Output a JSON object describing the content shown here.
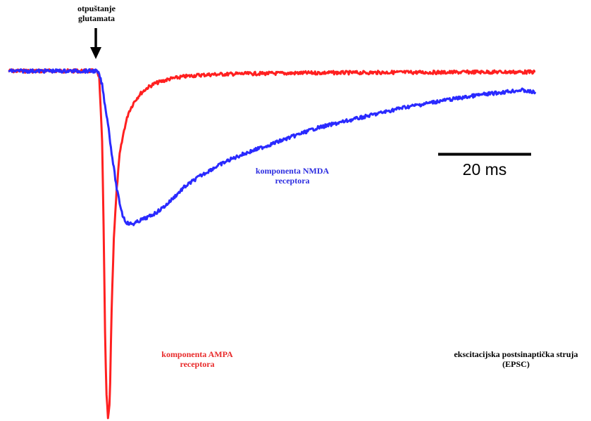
{
  "chart_data": {
    "type": "line",
    "x_unit": "ms",
    "y_unit": "relative current (0 = baseline, -1 = AMPA peak)",
    "series": [
      {
        "key": "ampa",
        "name": "komponenta AMPA receptora",
        "color": "#ff2020",
        "points": [
          [
            0,
            0
          ],
          [
            3,
            0
          ],
          [
            6,
            0
          ],
          [
            9,
            0
          ],
          [
            12,
            0
          ],
          [
            15,
            0
          ],
          [
            18,
            0
          ],
          [
            21,
            0
          ],
          [
            24,
            0
          ],
          [
            27,
            0
          ],
          [
            30,
            0
          ],
          [
            31,
            -0.02
          ],
          [
            32,
            -0.2
          ],
          [
            32.5,
            -0.45
          ],
          [
            33,
            -0.75
          ],
          [
            33.4,
            -0.92
          ],
          [
            34,
            -1.0
          ],
          [
            34.6,
            -0.96
          ],
          [
            35.2,
            -0.7
          ],
          [
            36,
            -0.48
          ],
          [
            37,
            -0.34
          ],
          [
            38,
            -0.24
          ],
          [
            39.5,
            -0.17
          ],
          [
            41,
            -0.12
          ],
          [
            43,
            -0.088
          ],
          [
            45,
            -0.066
          ],
          [
            47.5,
            -0.048
          ],
          [
            50,
            -0.036
          ],
          [
            55,
            -0.023
          ],
          [
            60,
            -0.016
          ],
          [
            65,
            -0.012
          ],
          [
            70,
            -0.01
          ],
          [
            80,
            -0.008
          ],
          [
            90,
            -0.007
          ],
          [
            100,
            -0.006
          ],
          [
            110,
            -0.005
          ],
          [
            120,
            -0.005
          ],
          [
            130,
            -0.004
          ],
          [
            140,
            -0.004
          ],
          [
            150,
            -0.004
          ],
          [
            160,
            -0.003
          ],
          [
            170,
            -0.003
          ],
          [
            180,
            -0.003
          ]
        ]
      },
      {
        "key": "nmda",
        "name": "komponenta NMDA receptora",
        "color": "#2a2aff",
        "points": [
          [
            0,
            0
          ],
          [
            3,
            0
          ],
          [
            6,
            0
          ],
          [
            9,
            0
          ],
          [
            12,
            0
          ],
          [
            15,
            0
          ],
          [
            18,
            0
          ],
          [
            21,
            0
          ],
          [
            24,
            0
          ],
          [
            27,
            0
          ],
          [
            30,
            0
          ],
          [
            31,
            -0.01
          ],
          [
            32,
            -0.04
          ],
          [
            33,
            -0.1
          ],
          [
            34,
            -0.15
          ],
          [
            35,
            -0.22
          ],
          [
            36,
            -0.28
          ],
          [
            37,
            -0.34
          ],
          [
            38,
            -0.38
          ],
          [
            39,
            -0.415
          ],
          [
            40,
            -0.433
          ],
          [
            41,
            -0.44
          ],
          [
            42,
            -0.44
          ],
          [
            43,
            -0.44
          ],
          [
            45,
            -0.43
          ],
          [
            48,
            -0.42
          ],
          [
            51,
            -0.405
          ],
          [
            54,
            -0.385
          ],
          [
            57,
            -0.36
          ],
          [
            60,
            -0.335
          ],
          [
            65,
            -0.305
          ],
          [
            70,
            -0.28
          ],
          [
            75,
            -0.258
          ],
          [
            80,
            -0.24
          ],
          [
            85,
            -0.225
          ],
          [
            90,
            -0.21
          ],
          [
            95,
            -0.195
          ],
          [
            100,
            -0.18
          ],
          [
            105,
            -0.165
          ],
          [
            110,
            -0.155
          ],
          [
            115,
            -0.145
          ],
          [
            120,
            -0.135
          ],
          [
            125,
            -0.125
          ],
          [
            130,
            -0.115
          ],
          [
            135,
            -0.105
          ],
          [
            140,
            -0.098
          ],
          [
            145,
            -0.09
          ],
          [
            150,
            -0.083
          ],
          [
            155,
            -0.077
          ],
          [
            160,
            -0.07
          ],
          [
            165,
            -0.065
          ],
          [
            170,
            -0.06
          ],
          [
            175,
            -0.055
          ],
          [
            180,
            -0.062
          ]
        ]
      }
    ],
    "xlim": [
      0,
      180
    ],
    "ylim": [
      -1.0,
      0
    ],
    "scale_bar": {
      "length": 20,
      "label": "20 ms"
    },
    "event_x": 30,
    "annotations": {
      "release": [
        "otpuštanje",
        "glutamata"
      ],
      "nmda": [
        "komponenta NMDA",
        "receptora"
      ],
      "ampa": [
        "komponenta AMPA",
        "receptora"
      ],
      "epsc": [
        "ekscitacijska postsinaptička struja",
        "(EPSC)"
      ]
    },
    "axes_visible": false,
    "grid": false
  }
}
